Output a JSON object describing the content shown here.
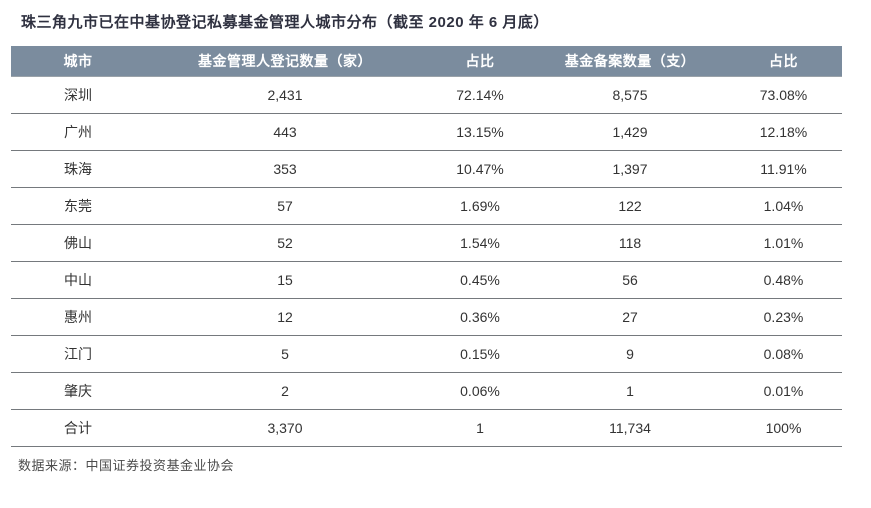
{
  "title": "珠三角九市已在中基协登记私募基金管理人城市分布（截至 2020 年 6 月底）",
  "source_note": "数据来源：中国证券投资基金业协会",
  "table": {
    "columns": [
      "城市",
      "基金管理人登记数量（家）",
      "占比",
      "基金备案数量（支）",
      "占比"
    ],
    "rows": [
      [
        "深圳",
        "2,431",
        "72.14%",
        "8,575",
        "73.08%"
      ],
      [
        "广州",
        "443",
        "13.15%",
        "1,429",
        "12.18%"
      ],
      [
        "珠海",
        "353",
        "10.47%",
        "1,397",
        "11.91%"
      ],
      [
        "东莞",
        "57",
        "1.69%",
        "122",
        "1.04%"
      ],
      [
        "佛山",
        "52",
        "1.54%",
        "118",
        "1.01%"
      ],
      [
        "中山",
        "15",
        "0.45%",
        "56",
        "0.48%"
      ],
      [
        "惠州",
        "12",
        "0.36%",
        "27",
        "0.23%"
      ],
      [
        "江门",
        "5",
        "0.15%",
        "9",
        "0.08%"
      ],
      [
        "肇庆",
        "2",
        "0.06%",
        "1",
        "0.01%"
      ],
      [
        "合计",
        "3,370",
        "1",
        "11,734",
        "100%"
      ]
    ]
  },
  "chart_data": {
    "type": "table",
    "title": "珠三角九市已在中基协登记私募基金管理人城市分布（截至 2020 年 6 月底）",
    "columns": [
      "城市",
      "基金管理人登记数量（家）",
      "占比",
      "基金备案数量（支）",
      "占比"
    ],
    "categories": [
      "深圳",
      "广州",
      "珠海",
      "东莞",
      "佛山",
      "中山",
      "惠州",
      "江门",
      "肇庆",
      "合计"
    ],
    "series": [
      {
        "name": "基金管理人登记数量（家）",
        "values": [
          2431,
          443,
          353,
          57,
          52,
          15,
          12,
          5,
          2,
          3370
        ]
      },
      {
        "name": "占比",
        "values": [
          "72.14%",
          "13.15%",
          "10.47%",
          "1.69%",
          "1.54%",
          "0.45%",
          "0.36%",
          "0.15%",
          "0.06%",
          "1"
        ]
      },
      {
        "name": "基金备案数量（支）",
        "values": [
          8575,
          1429,
          1397,
          122,
          118,
          56,
          27,
          9,
          1,
          11734
        ]
      },
      {
        "name": "占比",
        "values": [
          "73.08%",
          "12.18%",
          "11.91%",
          "1.04%",
          "1.01%",
          "0.48%",
          "0.23%",
          "0.08%",
          "0.01%",
          "100%"
        ]
      }
    ],
    "annotations": [
      "数据来源：中国证券投资基金业协会"
    ]
  },
  "colors": {
    "header_bg": "#7b8c9e",
    "header_text": "#ffffff",
    "row_border": "#75797d",
    "title_text": "#2f3140",
    "cell_text": "#333333",
    "source_text": "#4c4c4c"
  }
}
